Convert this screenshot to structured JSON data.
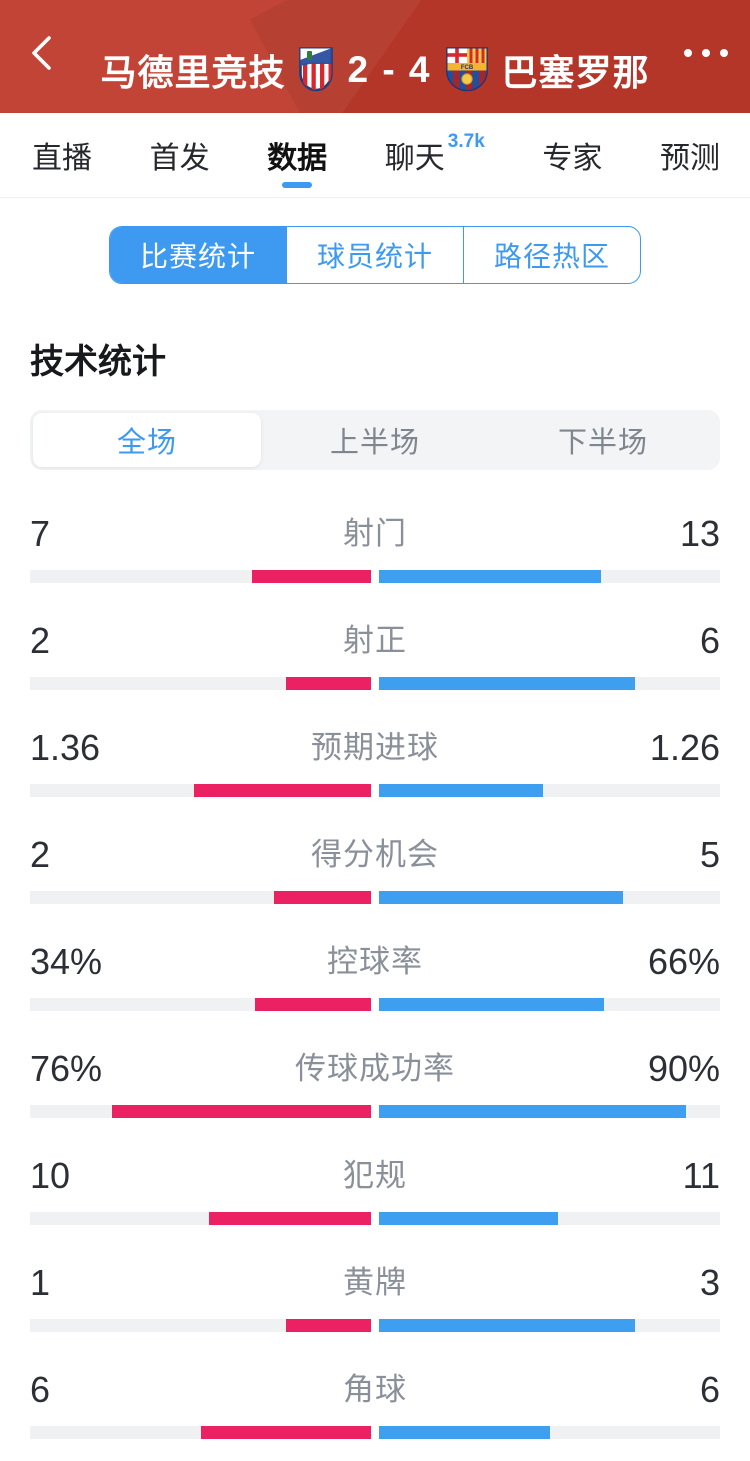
{
  "header": {
    "home_team": "马德里竞技",
    "away_team": "巴塞罗那",
    "score": "2 - 4",
    "icons": {
      "back_icon": "chevron-left",
      "more_icon": "ellipsis-horizontal",
      "home_crest_icon": "atletico-madrid-crest",
      "away_crest_icon": "fc-barcelona-crest"
    }
  },
  "tabs": {
    "items": [
      {
        "label": "直播",
        "active": false
      },
      {
        "label": "首发",
        "active": false
      },
      {
        "label": "数据",
        "active": true
      },
      {
        "label": "聊天",
        "active": false,
        "badge": "3.7k"
      },
      {
        "label": "专家",
        "active": false
      },
      {
        "label": "预测",
        "active": false
      }
    ]
  },
  "subtabs": {
    "items": [
      {
        "label": "比赛统计",
        "active": true
      },
      {
        "label": "球员统计",
        "active": false
      },
      {
        "label": "路径热区",
        "active": false
      }
    ]
  },
  "section": {
    "title": "技术统计"
  },
  "period_toggle": {
    "items": [
      {
        "label": "全场",
        "active": true
      },
      {
        "label": "上半场",
        "active": false
      },
      {
        "label": "下半场",
        "active": false
      }
    ]
  },
  "stats": {
    "rows": [
      {
        "label": "射门",
        "home": "7",
        "away": "13"
      },
      {
        "label": "射正",
        "home": "2",
        "away": "6"
      },
      {
        "label": "预期进球",
        "home": "1.36",
        "away": "1.26"
      },
      {
        "label": "得分机会",
        "home": "2",
        "away": "5"
      },
      {
        "label": "控球率",
        "home": "34%",
        "away": "66%"
      },
      {
        "label": "传球成功率",
        "home": "76%",
        "away": "90%"
      },
      {
        "label": "犯规",
        "home": "10",
        "away": "11"
      },
      {
        "label": "黄牌",
        "home": "1",
        "away": "3"
      },
      {
        "label": "角球",
        "home": "6",
        "away": "6"
      }
    ]
  },
  "chart_data": {
    "type": "bar",
    "title": "技术统计",
    "categories": [
      "射门",
      "射正",
      "预期进球",
      "得分机会",
      "控球率",
      "传球成功率",
      "犯规",
      "黄牌",
      "角球"
    ],
    "series": [
      {
        "name": "马德里竞技",
        "values": [
          7,
          2,
          1.36,
          2,
          34,
          76,
          10,
          1,
          6
        ]
      },
      {
        "name": "巴塞罗那",
        "values": [
          13,
          6,
          1.26,
          5,
          66,
          90,
          11,
          3,
          6
        ]
      }
    ],
    "units": [
      "",
      "",
      "",
      "",
      "%",
      "%",
      "",
      "",
      ""
    ],
    "legend_position": "none",
    "layout": "diverging-center-bars"
  },
  "colors": {
    "header_bg": "#bf3a2c",
    "home": "#ec2163",
    "away": "#3e9ef0",
    "accent": "#3d9af0",
    "track": "#f0f1f3"
  }
}
